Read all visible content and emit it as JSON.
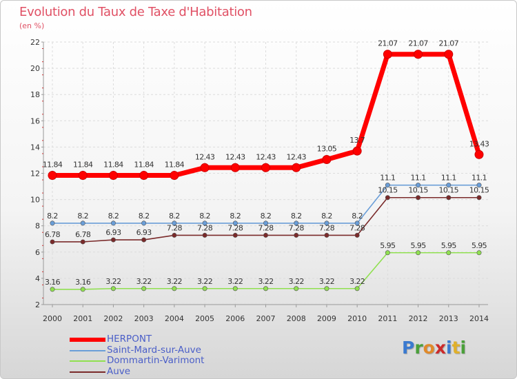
{
  "title": "Evolution du Taux de Taxe d'Habitation",
  "subtitle": "(en %)",
  "logo": {
    "text": "Proxiti",
    "colors": [
      "#3a7ad0",
      "#4aa03a",
      "#e08a2a",
      "#cc2a2a",
      "#3a7ad0",
      "#e0b02a",
      "#4aa03a"
    ]
  },
  "chart_data": {
    "type": "line",
    "x": [
      "2000",
      "2001",
      "2002",
      "2003",
      "2004",
      "2005",
      "2006",
      "2007",
      "2008",
      "2009",
      "2010",
      "2011",
      "2012",
      "2013",
      "2014"
    ],
    "ylim": [
      2,
      22
    ],
    "yticks": [
      "2",
      "4",
      "6",
      "8",
      "10",
      "12",
      "14",
      "16",
      "18",
      "20",
      "22"
    ],
    "grid": true,
    "legend_placement": "bottom-left",
    "series": [
      {
        "name": "HERPONT",
        "color": "#ff0000",
        "values": [
          11.84,
          11.84,
          11.84,
          11.84,
          11.84,
          12.43,
          12.43,
          12.43,
          12.43,
          13.05,
          13.7,
          21.07,
          21.07,
          21.07,
          13.43
        ],
        "labels": [
          "11.84",
          "11.84",
          "11.84",
          "11.84",
          "11.84",
          "12.43",
          "12.43",
          "12.43",
          "12.43",
          "13.05",
          "13.7",
          "21.07",
          "21.07",
          "21.07",
          "13.43"
        ]
      },
      {
        "name": "Saint-Mard-sur-Auve",
        "color": "#6a9ed8",
        "values": [
          8.2,
          8.2,
          8.2,
          8.2,
          8.2,
          8.2,
          8.2,
          8.2,
          8.2,
          8.2,
          8.2,
          11.1,
          11.1,
          11.1,
          11.1
        ],
        "labels": [
          "8.2",
          "8.2",
          "8.2",
          "8.2",
          "8.2",
          "8.2",
          "8.2",
          "8.2",
          "8.2",
          "8.2",
          "8.2",
          "11.1",
          "11.1",
          "11.1",
          "11.1"
        ]
      },
      {
        "name": "Dommartin-Varimont",
        "color": "#90e050",
        "values": [
          3.16,
          3.16,
          3.22,
          3.22,
          3.22,
          3.22,
          3.22,
          3.22,
          3.22,
          3.22,
          3.22,
          5.95,
          5.95,
          5.95,
          5.95
        ],
        "labels": [
          "3.16",
          "3.16",
          "3.22",
          "3.22",
          "3.22",
          "3.22",
          "3.22",
          "3.22",
          "3.22",
          "3.22",
          "3.22",
          "5.95",
          "5.95",
          "5.95",
          "5.95"
        ]
      },
      {
        "name": "Auve",
        "color": "#7a2a2a",
        "values": [
          6.78,
          6.78,
          6.93,
          6.93,
          7.28,
          7.28,
          7.28,
          7.28,
          7.28,
          7.28,
          7.28,
          10.15,
          10.15,
          10.15,
          10.15
        ],
        "labels": [
          "6.78",
          "6.78",
          "6.93",
          "6.93",
          "7.28",
          "7.28",
          "7.28",
          "7.28",
          "7.28",
          "7.28",
          "7.28",
          "10.15",
          "10.15",
          "10.15",
          "10.15"
        ]
      }
    ]
  }
}
